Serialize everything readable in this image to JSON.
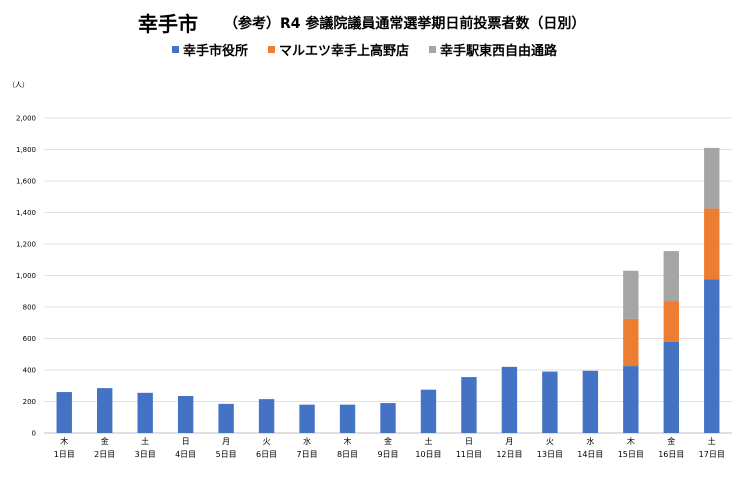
{
  "title": {
    "main": "幸手市",
    "sub": "（参考）R4 参議院議員通常選挙期日前投票者数（日別）"
  },
  "unit_label": "（人）",
  "colors": {
    "series1": "#4472C4",
    "series2": "#ED7D31",
    "series3": "#A5A5A5",
    "gridline": "#D9D9D9",
    "axis": "#BFBFBF"
  },
  "chart_data": {
    "type": "bar",
    "stacked": true,
    "title": "（参考）R4 参議院議員通常選挙期日前投票者数（日別）",
    "ylabel": "（人）",
    "ylim": [
      0,
      2000
    ],
    "yticks": [
      0,
      200,
      400,
      600,
      800,
      1000,
      1200,
      1400,
      1600,
      1800,
      2000
    ],
    "ytick_labels": [
      "0",
      "200",
      "400",
      "600",
      "800",
      "1,000",
      "1,200",
      "1,400",
      "1,600",
      "1,800",
      "2,000"
    ],
    "grid": true,
    "legend_position": "top",
    "categories": [
      {
        "weekday": "木",
        "day": "1日目"
      },
      {
        "weekday": "金",
        "day": "2日目"
      },
      {
        "weekday": "土",
        "day": "3日目"
      },
      {
        "weekday": "日",
        "day": "4日目"
      },
      {
        "weekday": "月",
        "day": "5日目"
      },
      {
        "weekday": "火",
        "day": "6日目"
      },
      {
        "weekday": "水",
        "day": "7日目"
      },
      {
        "weekday": "木",
        "day": "8日目"
      },
      {
        "weekday": "金",
        "day": "9日目"
      },
      {
        "weekday": "土",
        "day": "10日目"
      },
      {
        "weekday": "日",
        "day": "11日目"
      },
      {
        "weekday": "月",
        "day": "12日目"
      },
      {
        "weekday": "火",
        "day": "13日目"
      },
      {
        "weekday": "水",
        "day": "14日目"
      },
      {
        "weekday": "木",
        "day": "15日目"
      },
      {
        "weekday": "金",
        "day": "16日目"
      },
      {
        "weekday": "土",
        "day": "17日目"
      }
    ],
    "series": [
      {
        "name": "幸手市役所",
        "color": "#4472C4",
        "values": [
          260,
          285,
          255,
          235,
          185,
          215,
          180,
          180,
          190,
          275,
          355,
          420,
          390,
          395,
          425,
          580,
          975
        ]
      },
      {
        "name": "マルエツ幸手上高野店",
        "color": "#ED7D31",
        "values": [
          0,
          0,
          0,
          0,
          0,
          0,
          0,
          0,
          0,
          0,
          0,
          0,
          0,
          0,
          300,
          255,
          450
        ]
      },
      {
        "name": "幸手駅東西自由通路",
        "color": "#A5A5A5",
        "values": [
          0,
          0,
          0,
          0,
          0,
          0,
          0,
          0,
          0,
          0,
          0,
          0,
          0,
          0,
          305,
          320,
          385
        ]
      }
    ]
  }
}
